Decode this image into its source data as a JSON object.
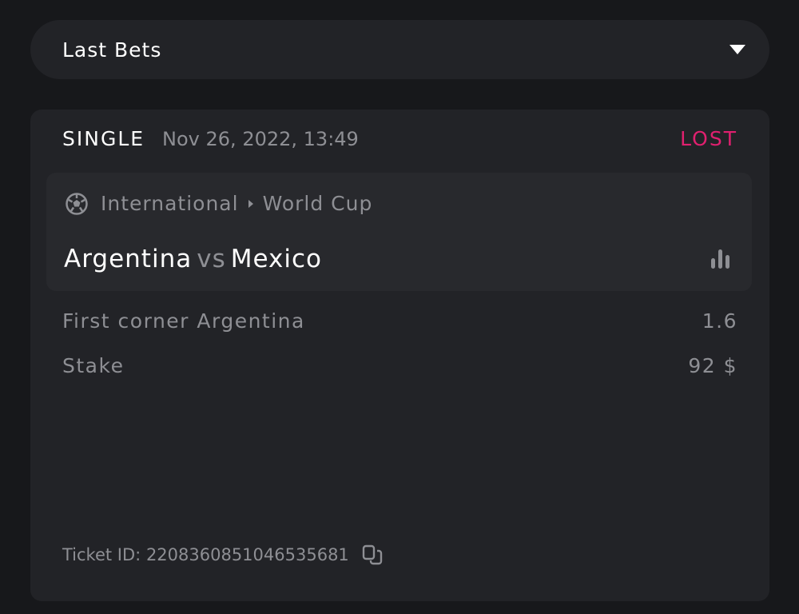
{
  "dropdown": {
    "title": "Last Bets",
    "icon": "caret-down-icon"
  },
  "bet": {
    "type": "SINGLE",
    "date": "Nov 26, 2022, 13:49",
    "status": "LOST",
    "status_color": "#e0206f",
    "event": {
      "sport_icon": "soccer-ball-icon",
      "league": "International",
      "competition": "World Cup",
      "home": "Argentina",
      "vs": "vs",
      "away": "Mexico"
    },
    "selection": {
      "label": "First corner Argentina",
      "odds": "1.6"
    },
    "stake": {
      "label": "Stake",
      "value": "92 $"
    },
    "ticket": {
      "label": "Ticket ID:",
      "id": "2208360851046535681"
    }
  }
}
